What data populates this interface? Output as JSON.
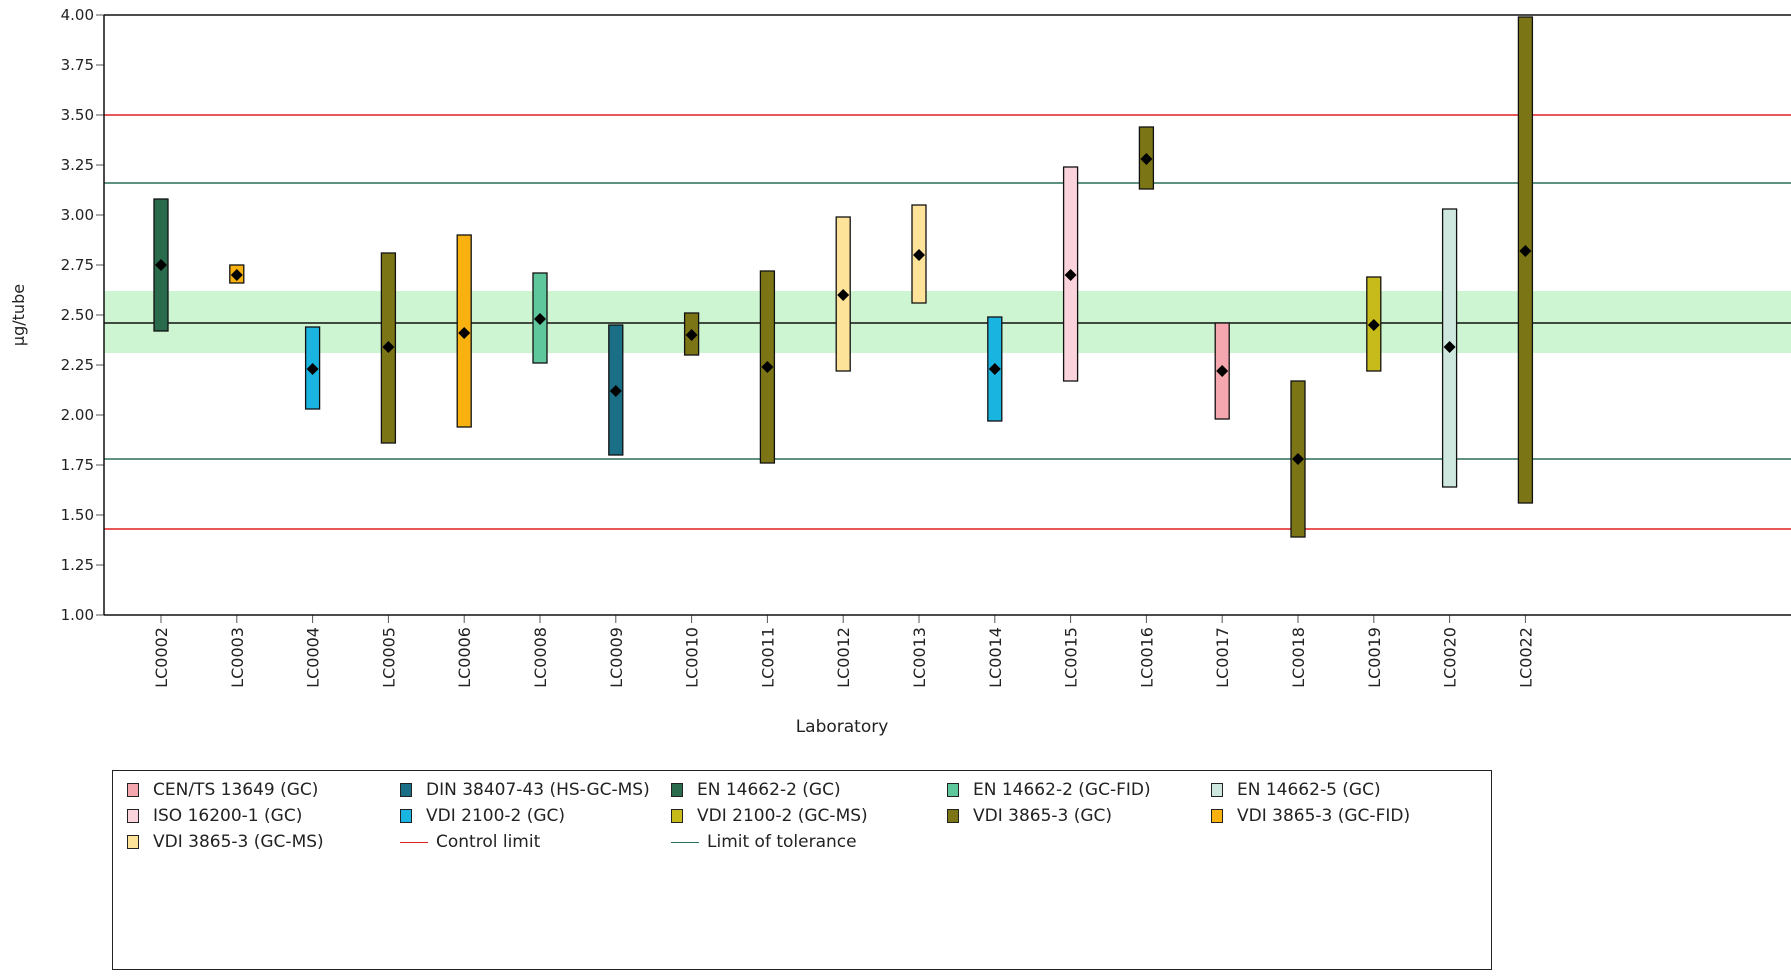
{
  "chart_data": {
    "type": "box",
    "xlabel": "Laboratory",
    "ylabel": "µg/tube",
    "ylim": [
      1.0,
      4.0
    ],
    "yticks": [
      "1.00",
      "1.25",
      "1.50",
      "1.75",
      "2.00",
      "2.25",
      "2.50",
      "2.75",
      "3.00",
      "3.25",
      "3.50",
      "3.75",
      "4.00"
    ],
    "assigned_value": 2.46,
    "tolerance_band": [
      2.31,
      2.62
    ],
    "control_limits": [
      1.43,
      3.5
    ],
    "tolerance_limits": [
      1.78,
      3.16
    ],
    "laboratories": [
      {
        "lab": "LC0002",
        "method": "EN 14662-2 (GC)",
        "low": 2.42,
        "high": 3.08,
        "mean": 2.75
      },
      {
        "lab": "LC0003",
        "method": "VDI 3865-3 (GC-FID)",
        "low": 2.66,
        "high": 2.75,
        "mean": 2.7
      },
      {
        "lab": "LC0004",
        "method": "VDI 2100-2 (GC)",
        "low": 2.03,
        "high": 2.44,
        "mean": 2.23
      },
      {
        "lab": "LC0005",
        "method": "VDI 3865-3 (GC)",
        "low": 1.86,
        "high": 2.81,
        "mean": 2.34
      },
      {
        "lab": "LC0006",
        "method": "VDI 3865-3 (GC-FID)",
        "low": 1.94,
        "high": 2.9,
        "mean": 2.41
      },
      {
        "lab": "LC0008",
        "method": "EN 14662-2 (GC-FID)",
        "low": 2.26,
        "high": 2.71,
        "mean": 2.48
      },
      {
        "lab": "LC0009",
        "method": "DIN 38407-43 (HS-GC-MS)",
        "low": 1.8,
        "high": 2.45,
        "mean": 2.12
      },
      {
        "lab": "LC0010",
        "method": "VDI 3865-3 (GC)",
        "low": 2.3,
        "high": 2.51,
        "mean": 2.4
      },
      {
        "lab": "LC0011",
        "method": "VDI 3865-3 (GC)",
        "low": 1.76,
        "high": 2.72,
        "mean": 2.24
      },
      {
        "lab": "LC0012",
        "method": "VDI 3865-3 (GC-MS)",
        "low": 2.22,
        "high": 2.99,
        "mean": 2.6
      },
      {
        "lab": "LC0013",
        "method": "VDI 3865-3 (GC-MS)",
        "low": 2.56,
        "high": 3.05,
        "mean": 2.8
      },
      {
        "lab": "LC0014",
        "method": "VDI 2100-2 (GC)",
        "low": 1.97,
        "high": 2.49,
        "mean": 2.23
      },
      {
        "lab": "LC0015",
        "method": "ISO 16200-1 (GC)",
        "low": 2.17,
        "high": 3.24,
        "mean": 2.7
      },
      {
        "lab": "LC0016",
        "method": "VDI 3865-3 (GC)",
        "low": 3.13,
        "high": 3.44,
        "mean": 3.28
      },
      {
        "lab": "LC0017",
        "method": "CEN/TS 13649 (GC)",
        "low": 1.98,
        "high": 2.46,
        "mean": 2.22
      },
      {
        "lab": "LC0018",
        "method": "VDI 3865-3 (GC)",
        "low": 1.39,
        "high": 2.17,
        "mean": 1.78
      },
      {
        "lab": "LC0019",
        "method": "VDI 2100-2 (GC-MS)",
        "low": 2.22,
        "high": 2.69,
        "mean": 2.45
      },
      {
        "lab": "LC0020",
        "method": "EN 14662-5 (GC)",
        "low": 1.64,
        "high": 3.03,
        "mean": 2.34
      },
      {
        "lab": "LC0022",
        "method": "VDI 3865-3 (GC)",
        "low": 1.56,
        "high": 3.99,
        "mean": 2.82
      }
    ],
    "colors": {
      "band": "#cef5d2",
      "control_limit": "#e02020",
      "tolerance_limit": "#2a6f58",
      "assigned": "#111111",
      "methods": {
        "CEN/TS 13649 (GC)": "#f4a7ae",
        "DIN 38407-43 (HS-GC-MS)": "#1a6f86",
        "EN 14662-2 (GC)": "#2a6b4e",
        "EN 14662-2 (GC-FID)": "#5ec79b",
        "EN 14662-5 (GC)": "#cfe8df",
        "ISO 16200-1 (GC)": "#fbd3dc",
        "VDI 2100-2 (GC)": "#1ab4e1",
        "VDI 2100-2 (GC-MS)": "#c7bb1c",
        "VDI 3865-3 (GC)": "#7b7516",
        "VDI 3865-3 (GC-FID)": "#f8b10e",
        "VDI 3865-3 (GC-MS)": "#fde39a"
      }
    }
  },
  "legend": {
    "items": [
      {
        "label": "CEN/TS 13649 (GC)",
        "kind": "box",
        "color": "#f4a7ae"
      },
      {
        "label": "DIN 38407-43 (HS-GC-MS)",
        "kind": "box",
        "color": "#1a6f86"
      },
      {
        "label": "EN 14662-2 (GC)",
        "kind": "box",
        "color": "#2a6b4e"
      },
      {
        "label": "EN 14662-2 (GC-FID)",
        "kind": "box",
        "color": "#5ec79b"
      },
      {
        "label": "EN 14662-5 (GC)",
        "kind": "box",
        "color": "#cfe8df"
      },
      {
        "label": "ISO 16200-1 (GC)",
        "kind": "box",
        "color": "#fbd3dc"
      },
      {
        "label": "VDI 2100-2 (GC)",
        "kind": "box",
        "color": "#1ab4e1"
      },
      {
        "label": "VDI 2100-2 (GC-MS)",
        "kind": "box",
        "color": "#c7bb1c"
      },
      {
        "label": "VDI 3865-3 (GC)",
        "kind": "box",
        "color": "#7b7516"
      },
      {
        "label": "VDI 3865-3 (GC-FID)",
        "kind": "box",
        "color": "#f8b10e"
      },
      {
        "label": "VDI 3865-3 (GC-MS)",
        "kind": "box",
        "color": "#fde39a"
      },
      {
        "label": "Control limit",
        "kind": "line",
        "color": "#e02020"
      },
      {
        "label": "Limit of tolerance",
        "kind": "line",
        "color": "#2a6f58"
      }
    ]
  }
}
